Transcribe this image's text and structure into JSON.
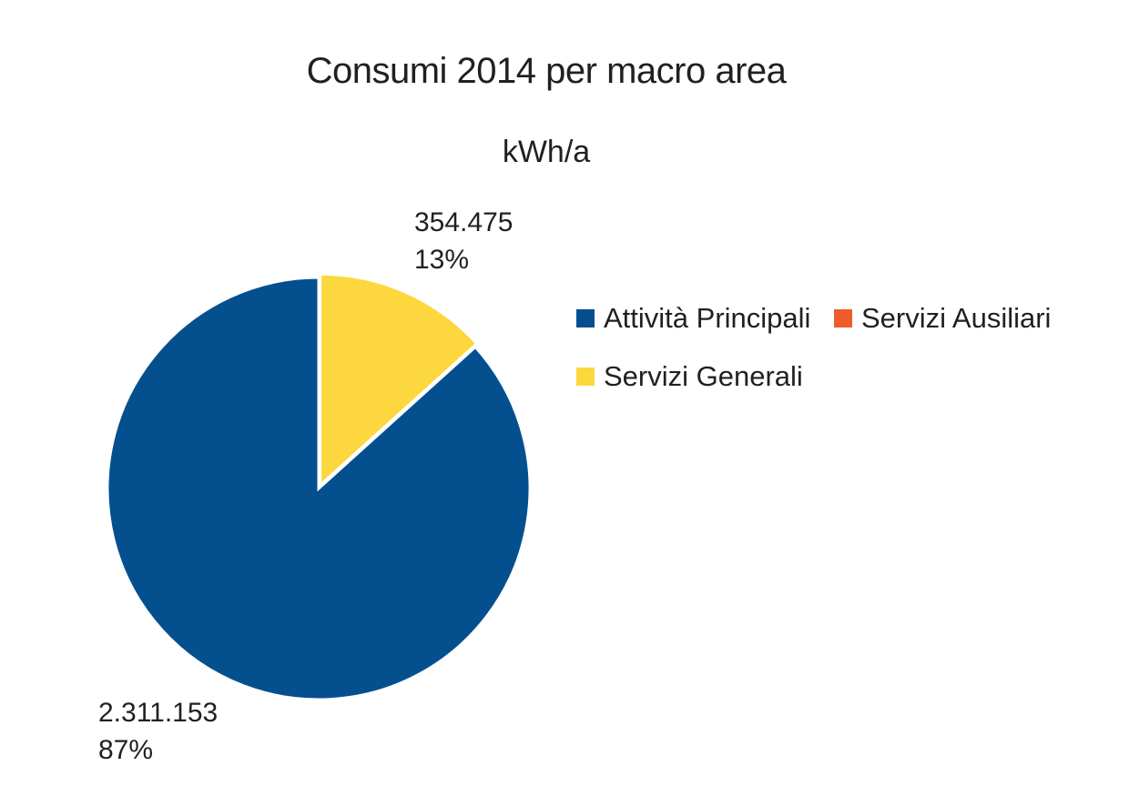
{
  "chart_data": {
    "type": "pie",
    "title": "Consumi 2014 per macro area",
    "subtitle": "kWh/a",
    "slices": [
      {
        "name": "Attività Principali",
        "value": 2311153,
        "value_label": "2.311.153",
        "percent_label": "87%",
        "color": "#04508f"
      },
      {
        "name": "Servizi Ausiliari",
        "value": 0,
        "value_label": "",
        "percent_label": "",
        "color": "#ef5b2b"
      },
      {
        "name": "Servizi Generali",
        "value": 354475,
        "value_label": "354.475",
        "percent_label": "13%",
        "color": "#fcd73d"
      }
    ],
    "legend_position": "right"
  }
}
